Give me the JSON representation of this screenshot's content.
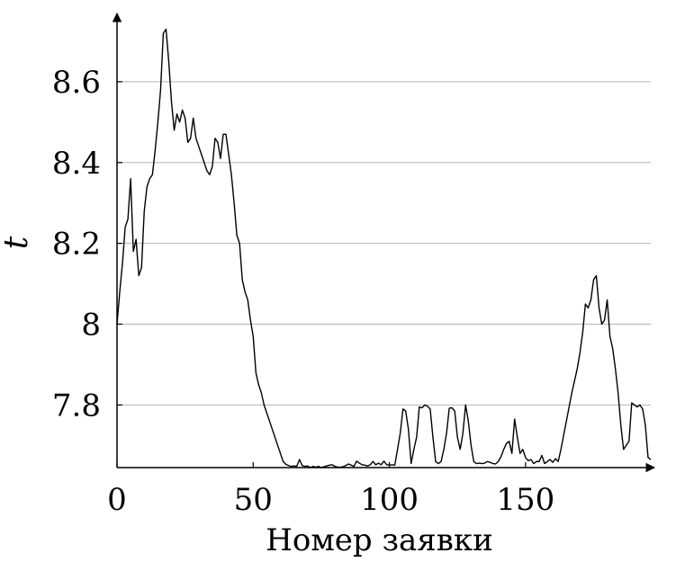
{
  "chart_data": {
    "type": "line",
    "title": "",
    "xlabel": "Номер заявки",
    "ylabel": "t",
    "xlim": [
      0,
      196
    ],
    "ylim": [
      7.645,
      8.74
    ],
    "grid": "horizontal",
    "x_ticks": [
      {
        "value": 0,
        "label": "0"
      },
      {
        "value": 50,
        "label": "50"
      },
      {
        "value": 100,
        "label": "100"
      },
      {
        "value": 150,
        "label": "150"
      }
    ],
    "y_ticks": [
      {
        "value": 7.8,
        "label": "7.8"
      },
      {
        "value": 8.0,
        "label": "8"
      },
      {
        "value": 8.2,
        "label": "8.2"
      },
      {
        "value": 8.4,
        "label": "8.4"
      },
      {
        "value": 8.6,
        "label": "8.6"
      }
    ],
    "series": [
      {
        "name": "",
        "points": [
          [
            0,
            8.0
          ],
          [
            1,
            8.08
          ],
          [
            2,
            8.15
          ],
          [
            3,
            8.24
          ],
          [
            4,
            8.26
          ],
          [
            5,
            8.36
          ],
          [
            6,
            8.18
          ],
          [
            7,
            8.21
          ],
          [
            8,
            8.12
          ],
          [
            9,
            8.14
          ],
          [
            10,
            8.28
          ],
          [
            11,
            8.34
          ],
          [
            12,
            8.36
          ],
          [
            13,
            8.37
          ],
          [
            14,
            8.43
          ],
          [
            15,
            8.5
          ],
          [
            16,
            8.58
          ],
          [
            17,
            8.72
          ],
          [
            18,
            8.73
          ],
          [
            19,
            8.65
          ],
          [
            20,
            8.55
          ],
          [
            21,
            8.48
          ],
          [
            22,
            8.52
          ],
          [
            23,
            8.5
          ],
          [
            24,
            8.53
          ],
          [
            25,
            8.51
          ],
          [
            26,
            8.45
          ],
          [
            27,
            8.46
          ],
          [
            28,
            8.51
          ],
          [
            29,
            8.46
          ],
          [
            30,
            8.44
          ],
          [
            31,
            8.42
          ],
          [
            32,
            8.4
          ],
          [
            33,
            8.38
          ],
          [
            34,
            8.37
          ],
          [
            35,
            8.39
          ],
          [
            36,
            8.46
          ],
          [
            37,
            8.45
          ],
          [
            38,
            8.41
          ],
          [
            39,
            8.47
          ],
          [
            40,
            8.47
          ],
          [
            41,
            8.42
          ],
          [
            42,
            8.37
          ],
          [
            43,
            8.3
          ],
          [
            44,
            8.22
          ],
          [
            45,
            8.2
          ],
          [
            46,
            8.11
          ],
          [
            47,
            8.08
          ],
          [
            48,
            8.06
          ],
          [
            49,
            8.01
          ],
          [
            50,
            7.97
          ],
          [
            51,
            7.88
          ],
          [
            52,
            7.85
          ],
          [
            53,
            7.83
          ],
          [
            54,
            7.8
          ],
          [
            55,
            7.78
          ],
          [
            56,
            7.76
          ],
          [
            57,
            7.74
          ],
          [
            58,
            7.72
          ],
          [
            59,
            7.7
          ],
          [
            60,
            7.68
          ],
          [
            61,
            7.66
          ],
          [
            62,
            7.653
          ],
          [
            63,
            7.65
          ],
          [
            64,
            7.648
          ],
          [
            65,
            7.649
          ],
          [
            66,
            7.648
          ],
          [
            67,
            7.665
          ],
          [
            68,
            7.65
          ],
          [
            69,
            7.648
          ],
          [
            70,
            7.649
          ],
          [
            71,
            7.645
          ],
          [
            72,
            7.648
          ],
          [
            73,
            7.646
          ],
          [
            74,
            7.648
          ],
          [
            75,
            7.645
          ],
          [
            76,
            7.647
          ],
          [
            77,
            7.649
          ],
          [
            78,
            7.651
          ],
          [
            79,
            7.652
          ],
          [
            80,
            7.648
          ],
          [
            81,
            7.646
          ],
          [
            82,
            7.646
          ],
          [
            83,
            7.647
          ],
          [
            84,
            7.65
          ],
          [
            85,
            7.654
          ],
          [
            86,
            7.651
          ],
          [
            87,
            7.648
          ],
          [
            88,
            7.661
          ],
          [
            89,
            7.656
          ],
          [
            90,
            7.652
          ],
          [
            91,
            7.651
          ],
          [
            92,
            7.649
          ],
          [
            93,
            7.652
          ],
          [
            94,
            7.66
          ],
          [
            95,
            7.652
          ],
          [
            96,
            7.656
          ],
          [
            97,
            7.652
          ],
          [
            98,
            7.661
          ],
          [
            99,
            7.652
          ],
          [
            100,
            7.651
          ],
          [
            101,
            7.652
          ],
          [
            102,
            7.651
          ],
          [
            103,
            7.69
          ],
          [
            104,
            7.73
          ],
          [
            105,
            7.79
          ],
          [
            106,
            7.785
          ],
          [
            107,
            7.74
          ],
          [
            108,
            7.655
          ],
          [
            109,
            7.69
          ],
          [
            110,
            7.72
          ],
          [
            111,
            7.795
          ],
          [
            112,
            7.793
          ],
          [
            113,
            7.8
          ],
          [
            114,
            7.797
          ],
          [
            115,
            7.79
          ],
          [
            116,
            7.72
          ],
          [
            117,
            7.66
          ],
          [
            118,
            7.655
          ],
          [
            119,
            7.66
          ],
          [
            120,
            7.69
          ],
          [
            121,
            7.73
          ],
          [
            122,
            7.792
          ],
          [
            123,
            7.793
          ],
          [
            124,
            7.785
          ],
          [
            125,
            7.72
          ],
          [
            126,
            7.69
          ],
          [
            127,
            7.73
          ],
          [
            128,
            7.8
          ],
          [
            129,
            7.76
          ],
          [
            130,
            7.7
          ],
          [
            131,
            7.66
          ],
          [
            132,
            7.655
          ],
          [
            133,
            7.656
          ],
          [
            134,
            7.655
          ],
          [
            135,
            7.656
          ],
          [
            136,
            7.66
          ],
          [
            137,
            7.658
          ],
          [
            138,
            7.655
          ],
          [
            139,
            7.654
          ],
          [
            140,
            7.66
          ],
          [
            141,
            7.672
          ],
          [
            142,
            7.69
          ],
          [
            143,
            7.705
          ],
          [
            144,
            7.71
          ],
          [
            145,
            7.68
          ],
          [
            146,
            7.765
          ],
          [
            147,
            7.72
          ],
          [
            148,
            7.68
          ],
          [
            149,
            7.69
          ],
          [
            150,
            7.67
          ],
          [
            151,
            7.662
          ],
          [
            152,
            7.665
          ],
          [
            153,
            7.655
          ],
          [
            154,
            7.66
          ],
          [
            155,
            7.66
          ],
          [
            156,
            7.675
          ],
          [
            157,
            7.655
          ],
          [
            158,
            7.66
          ],
          [
            159,
            7.665
          ],
          [
            160,
            7.658
          ],
          [
            161,
            7.667
          ],
          [
            162,
            7.66
          ],
          [
            163,
            7.69
          ],
          [
            164,
            7.725
          ],
          [
            165,
            7.76
          ],
          [
            166,
            7.795
          ],
          [
            167,
            7.83
          ],
          [
            168,
            7.86
          ],
          [
            169,
            7.89
          ],
          [
            170,
            7.93
          ],
          [
            171,
            7.98
          ],
          [
            172,
            8.05
          ],
          [
            173,
            8.04
          ],
          [
            174,
            8.06
          ],
          [
            175,
            8.11
          ],
          [
            176,
            8.12
          ],
          [
            177,
            8.04
          ],
          [
            178,
            8.0
          ],
          [
            179,
            8.01
          ],
          [
            180,
            8.06
          ],
          [
            181,
            7.97
          ],
          [
            182,
            7.94
          ],
          [
            183,
            7.89
          ],
          [
            184,
            7.83
          ],
          [
            185,
            7.75
          ],
          [
            186,
            7.69
          ],
          [
            187,
            7.7
          ],
          [
            188,
            7.71
          ],
          [
            189,
            7.805
          ],
          [
            190,
            7.8
          ],
          [
            191,
            7.795
          ],
          [
            192,
            7.8
          ],
          [
            193,
            7.79
          ],
          [
            194,
            7.75
          ],
          [
            195,
            7.67
          ],
          [
            196,
            7.665
          ]
        ]
      }
    ]
  }
}
